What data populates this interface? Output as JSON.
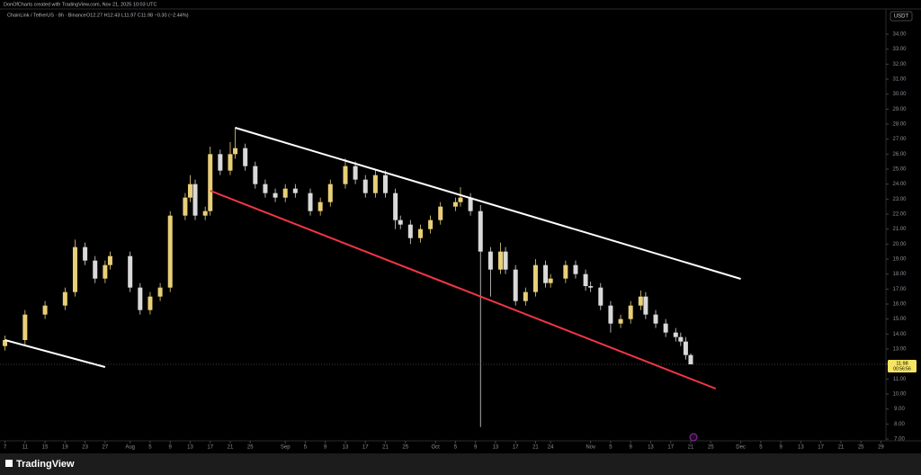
{
  "chart_data": {
    "type": "candlestick",
    "credit": "DonOfCharts created with TradingView.com, Nov 21, 2025 10:03 UTC",
    "symbol": "ChainLink / TetherUS · 8h · Binance",
    "ohlc": "O12.27 H12.43 L11.97 C11.98 −0.30 (−2.44%)",
    "currency": "USDT",
    "brand": "TradingView",
    "up_color": "#e8cf78",
    "down_color": "#d9d9d9",
    "x": [
      "2025-07-07",
      "2025-07-11",
      "2025-07-15",
      "2025-07-19",
      "2025-07-21",
      "2025-07-23",
      "2025-07-25",
      "2025-07-27",
      "2025-07-28",
      "2025-08-01",
      "2025-08-03",
      "2025-08-05",
      "2025-08-07",
      "2025-08-09",
      "2025-08-12",
      "2025-08-13",
      "2025-08-14",
      "2025-08-16",
      "2025-08-17",
      "2025-08-19",
      "2025-08-21",
      "2025-08-22",
      "2025-08-24",
      "2025-08-26",
      "2025-08-28",
      "2025-08-30",
      "2025-09-01",
      "2025-09-03",
      "2025-09-06",
      "2025-09-08",
      "2025-09-10",
      "2025-09-13",
      "2025-09-15",
      "2025-09-17",
      "2025-09-19",
      "2025-09-21",
      "2025-09-23",
      "2025-09-24",
      "2025-09-26",
      "2025-09-28",
      "2025-09-30",
      "2025-10-02",
      "2025-10-05",
      "2025-10-06",
      "2025-10-08",
      "2025-10-10",
      "2025-10-12",
      "2025-10-14",
      "2025-10-15",
      "2025-10-17",
      "2025-10-19",
      "2025-10-21",
      "2025-10-23",
      "2025-10-24",
      "2025-10-27",
      "2025-10-29",
      "2025-10-31",
      "2025-11-01",
      "2025-11-03",
      "2025-11-05",
      "2025-11-07",
      "2025-11-09",
      "2025-11-11",
      "2025-11-12",
      "2025-11-14",
      "2025-11-16",
      "2025-11-18",
      "2025-11-19",
      "2025-11-20",
      "2025-11-21"
    ],
    "open": [
      13.2,
      13.6,
      15.3,
      15.9,
      16.8,
      19.8,
      18.9,
      17.7,
      18.6,
      19.2,
      17.1,
      15.6,
      16.5,
      17.1,
      21.9,
      23.1,
      24.0,
      21.9,
      22.2,
      26.0,
      24.9,
      26.0,
      26.4,
      25.2,
      24.0,
      23.4,
      23.1,
      23.7,
      23.4,
      22.2,
      22.8,
      24.0,
      25.2,
      24.3,
      23.4,
      24.6,
      23.4,
      21.6,
      21.3,
      20.4,
      21.0,
      21.6,
      22.5,
      22.8,
      23.1,
      22.2,
      19.5,
      18.3,
      19.5,
      18.3,
      16.2,
      16.8,
      18.6,
      17.4,
      17.7,
      18.6,
      18.0,
      17.2,
      17.1,
      15.9,
      14.7,
      15.0,
      15.9,
      16.5,
      15.3,
      14.7,
      14.1,
      13.8,
      13.5,
      12.6
    ],
    "high": [
      13.9,
      15.6,
      16.2,
      17.1,
      20.3,
      20.1,
      19.2,
      18.9,
      19.5,
      19.5,
      17.4,
      16.8,
      17.4,
      22.2,
      23.4,
      24.6,
      24.3,
      22.5,
      26.5,
      26.3,
      26.8,
      27.8,
      26.7,
      25.5,
      24.3,
      23.7,
      24.0,
      24.0,
      23.7,
      23.1,
      24.3,
      25.7,
      25.5,
      24.6,
      25.0,
      24.9,
      23.7,
      21.9,
      21.6,
      21.3,
      21.9,
      22.8,
      23.1,
      23.8,
      23.4,
      22.6,
      19.8,
      20.1,
      19.8,
      18.6,
      17.1,
      19.0,
      18.9,
      18.0,
      18.9,
      18.9,
      18.3,
      17.5,
      17.4,
      16.2,
      15.3,
      16.2,
      16.9,
      16.8,
      15.6,
      15.0,
      14.4,
      14.1,
      13.8,
      12.7
    ],
    "low": [
      12.9,
      13.3,
      15.0,
      15.6,
      16.5,
      18.6,
      17.4,
      17.4,
      18.3,
      16.8,
      15.3,
      15.3,
      16.2,
      16.8,
      21.6,
      22.8,
      21.6,
      21.6,
      21.9,
      24.6,
      24.6,
      25.7,
      24.9,
      23.7,
      23.1,
      22.8,
      22.8,
      23.1,
      21.9,
      21.9,
      22.5,
      23.7,
      24.0,
      23.1,
      23.1,
      23.1,
      21.0,
      21.0,
      20.0,
      20.1,
      20.7,
      21.3,
      22.2,
      22.5,
      21.9,
      7.8,
      16.5,
      18.0,
      18.0,
      15.9,
      15.9,
      16.5,
      17.1,
      17.1,
      17.4,
      17.7,
      16.9,
      16.8,
      15.6,
      14.1,
      14.4,
      14.7,
      15.6,
      15.0,
      14.4,
      13.8,
      13.5,
      13.2,
      12.3,
      11.97
    ],
    "close": [
      13.6,
      15.3,
      15.9,
      16.8,
      19.8,
      18.9,
      17.7,
      18.6,
      19.2,
      17.1,
      15.6,
      16.5,
      17.1,
      21.9,
      23.1,
      24.0,
      21.9,
      22.2,
      26.0,
      24.9,
      26.0,
      26.4,
      25.2,
      24.0,
      23.4,
      23.1,
      23.7,
      23.4,
      22.2,
      22.8,
      24.0,
      25.2,
      24.3,
      23.4,
      24.6,
      23.4,
      21.6,
      21.3,
      20.4,
      21.0,
      21.6,
      22.5,
      22.8,
      23.1,
      22.2,
      19.5,
      18.3,
      19.5,
      18.3,
      16.2,
      16.8,
      18.6,
      17.4,
      17.7,
      18.6,
      18.0,
      17.2,
      17.1,
      15.9,
      14.7,
      15.0,
      15.9,
      16.5,
      15.3,
      14.7,
      14.1,
      13.8,
      13.5,
      12.6,
      11.98
    ],
    "trendlines": [
      {
        "color": "#ffffff",
        "x": [
          "2025-08-22",
          "2025-12-01"
        ],
        "y": [
          27.76,
          17.68
        ]
      },
      {
        "color": "#f23645",
        "x": [
          "2025-08-17",
          "2025-11-26"
        ],
        "y": [
          23.56,
          10.36
        ]
      },
      {
        "color": "#ffffff",
        "x": [
          "2025-07-07",
          "2025-07-27"
        ],
        "y": [
          13.6,
          11.8
        ]
      }
    ],
    "last_price": 11.98,
    "last_price_color": "#f5e463",
    "countdown": "00:56:56",
    "xlim": [
      "2025-07-06",
      "2025-12-30"
    ],
    "xticks": [
      {
        "value": "2025-07-07",
        "label": "7"
      },
      {
        "value": "2025-07-11",
        "label": "11"
      },
      {
        "value": "2025-07-15",
        "label": "15"
      },
      {
        "value": "2025-07-19",
        "label": "19"
      },
      {
        "value": "2025-07-23",
        "label": "23"
      },
      {
        "value": "2025-07-27",
        "label": "27"
      },
      {
        "value": "2025-08-01",
        "label": "Aug"
      },
      {
        "value": "2025-08-05",
        "label": "5"
      },
      {
        "value": "2025-08-09",
        "label": "9"
      },
      {
        "value": "2025-08-13",
        "label": "13"
      },
      {
        "value": "2025-08-17",
        "label": "17"
      },
      {
        "value": "2025-08-21",
        "label": "21"
      },
      {
        "value": "2025-08-25",
        "label": "25"
      },
      {
        "value": "2025-09-01",
        "label": "Sep"
      },
      {
        "value": "2025-09-05",
        "label": "5"
      },
      {
        "value": "2025-09-09",
        "label": "9"
      },
      {
        "value": "2025-09-13",
        "label": "13"
      },
      {
        "value": "2025-09-17",
        "label": "17"
      },
      {
        "value": "2025-09-21",
        "label": "21"
      },
      {
        "value": "2025-09-25",
        "label": "25"
      },
      {
        "value": "2025-10-01",
        "label": "Oct"
      },
      {
        "value": "2025-10-05",
        "label": "5"
      },
      {
        "value": "2025-10-09",
        "label": "9"
      },
      {
        "value": "2025-10-13",
        "label": "13"
      },
      {
        "value": "2025-10-17",
        "label": "17"
      },
      {
        "value": "2025-10-21",
        "label": "21"
      },
      {
        "value": "2025-10-24",
        "label": "24"
      },
      {
        "value": "2025-11-01",
        "label": "Nov"
      },
      {
        "value": "2025-11-05",
        "label": "5"
      },
      {
        "value": "2025-11-09",
        "label": "9"
      },
      {
        "value": "2025-11-13",
        "label": "13"
      },
      {
        "value": "2025-11-17",
        "label": "17"
      },
      {
        "value": "2025-11-21",
        "label": "21"
      },
      {
        "value": "2025-11-25",
        "label": "25"
      },
      {
        "value": "2025-12-01",
        "label": "Dec"
      },
      {
        "value": "2025-12-05",
        "label": "5"
      },
      {
        "value": "2025-12-09",
        "label": "9"
      },
      {
        "value": "2025-12-13",
        "label": "13"
      },
      {
        "value": "2025-12-17",
        "label": "17"
      },
      {
        "value": "2025-12-21",
        "label": "21"
      },
      {
        "value": "2025-12-25",
        "label": "25"
      },
      {
        "value": "2025-12-29",
        "label": "29"
      }
    ],
    "ylim": [
      6.88,
      35.68
    ],
    "yticks": [
      {
        "value": 7,
        "label": "7.00"
      },
      {
        "value": 8,
        "label": "8.00"
      },
      {
        "value": 9,
        "label": "9.00"
      },
      {
        "value": 10,
        "label": "10.00"
      },
      {
        "value": 11,
        "label": "11.00"
      },
      {
        "value": 12,
        "label": "12.00"
      },
      {
        "value": 13,
        "label": "13.00"
      },
      {
        "value": 14,
        "label": "14.00"
      },
      {
        "value": 15,
        "label": "15.00"
      },
      {
        "value": 16,
        "label": "16.00"
      },
      {
        "value": 17,
        "label": "17.00"
      },
      {
        "value": 18,
        "label": "18.00"
      },
      {
        "value": 19,
        "label": "19.00"
      },
      {
        "value": 20,
        "label": "20.00"
      },
      {
        "value": 21,
        "label": "21.00"
      },
      {
        "value": 22,
        "label": "22.00"
      },
      {
        "value": 23,
        "label": "23.00"
      },
      {
        "value": 24,
        "label": "24.00"
      },
      {
        "value": 25,
        "label": "25.00"
      },
      {
        "value": 26,
        "label": "26.00"
      },
      {
        "value": 27,
        "label": "27.00"
      },
      {
        "value": 28,
        "label": "28.00"
      },
      {
        "value": 29,
        "label": "29.00"
      },
      {
        "value": 30,
        "label": "30.00"
      },
      {
        "value": 31,
        "label": "31.00"
      },
      {
        "value": 32,
        "label": "32.00"
      },
      {
        "value": 33,
        "label": "33.00"
      },
      {
        "value": 34,
        "label": "34.00"
      }
    ]
  }
}
